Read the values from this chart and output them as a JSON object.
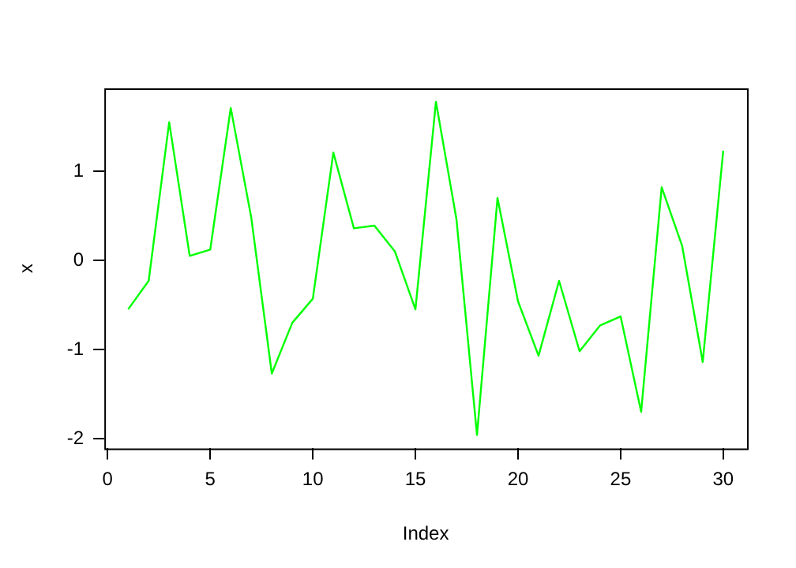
{
  "chart_data": {
    "type": "line",
    "xlabel": "Index",
    "ylabel": "x",
    "x": [
      1,
      2,
      3,
      4,
      5,
      6,
      7,
      8,
      9,
      10,
      11,
      12,
      13,
      14,
      15,
      16,
      17,
      18,
      19,
      20,
      21,
      22,
      23,
      24,
      25,
      26,
      27,
      28,
      29,
      30
    ],
    "series": [
      {
        "color": "#00ff00",
        "values": [
          -0.55,
          -0.23,
          1.55,
          0.05,
          0.12,
          1.71,
          0.48,
          -1.27,
          -0.7,
          -0.43,
          1.21,
          0.36,
          0.39,
          0.1,
          -0.55,
          1.78,
          0.46,
          -1.96,
          0.7,
          -0.46,
          -1.07,
          -0.23,
          -1.02,
          -0.73,
          -0.63,
          -1.7,
          0.82,
          0.16,
          -1.14,
          1.23
        ]
      }
    ],
    "xlim": [
      -0.16,
      31.16
    ],
    "xticks": [
      0,
      5,
      10,
      15,
      20,
      25,
      30
    ],
    "ylim": [
      -2.11,
      1.93
    ],
    "yticks": [
      -2,
      -1,
      0,
      1
    ],
    "grid": false,
    "legend": false,
    "marker": "none",
    "line_style": "solid"
  }
}
